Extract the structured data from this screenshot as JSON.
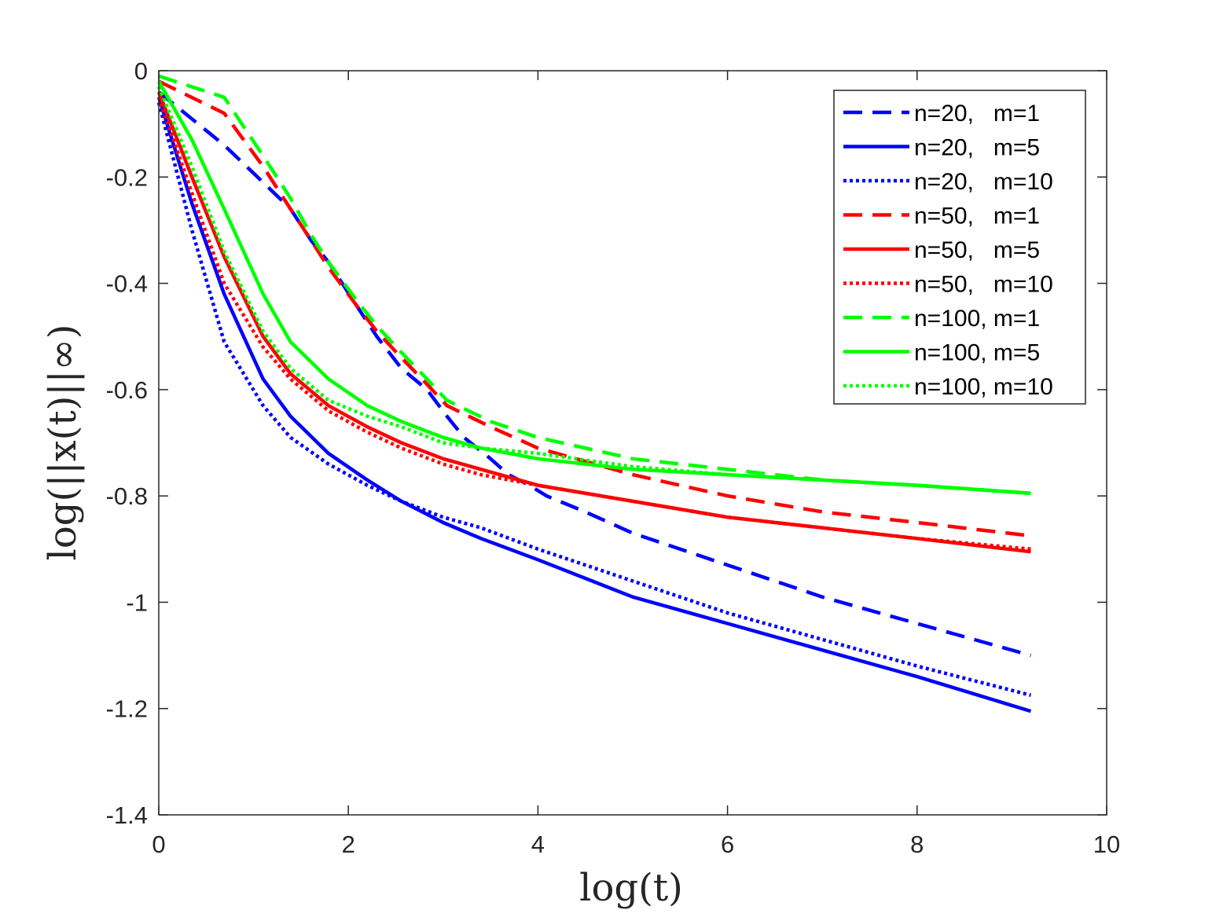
{
  "chart_data": {
    "type": "line",
    "title": "",
    "xlabel": "log(t)",
    "ylabel": "log(||x(t)||∞)",
    "xlim": [
      0,
      10
    ],
    "ylim": [
      -1.4,
      0
    ],
    "xticks": [
      0,
      2,
      4,
      6,
      8,
      10
    ],
    "yticks": [
      0,
      -0.2,
      -0.4,
      -0.6,
      -0.8,
      -1,
      -1.2,
      -1.4
    ],
    "xtick_labels": [
      "0",
      "2",
      "4",
      "6",
      "8",
      "10"
    ],
    "ytick_labels": [
      "0",
      "-0.2",
      "-0.4",
      "-0.6",
      "-0.8",
      "-1",
      "-1.2",
      "-1.4"
    ],
    "grid": false,
    "legend_position": "top-right",
    "series": [
      {
        "name": "n=20,   m=1",
        "color": "#0000ff",
        "style": "dashed",
        "x": [
          0,
          0.69,
          1.1,
          1.39,
          1.61,
          1.79,
          2.08,
          2.3,
          2.56,
          2.83,
          3.04,
          3.22,
          3.5,
          3.69,
          3.91,
          4.09,
          4.5,
          5,
          6,
          7,
          8,
          9.2
        ],
        "y": [
          -0.04,
          -0.14,
          -0.21,
          -0.26,
          -0.32,
          -0.36,
          -0.44,
          -0.5,
          -0.56,
          -0.6,
          -0.65,
          -0.69,
          -0.73,
          -0.76,
          -0.78,
          -0.8,
          -0.83,
          -0.87,
          -0.93,
          -0.99,
          -1.04,
          -1.1
        ]
      },
      {
        "name": "n=20,   m=5",
        "color": "#0000ff",
        "style": "solid",
        "x": [
          0,
          0.35,
          0.69,
          1.1,
          1.39,
          1.79,
          2.2,
          2.56,
          3,
          3.4,
          4,
          5,
          6,
          7,
          8,
          9.2
        ],
        "y": [
          -0.05,
          -0.25,
          -0.42,
          -0.58,
          -0.65,
          -0.72,
          -0.77,
          -0.81,
          -0.85,
          -0.88,
          -0.92,
          -0.99,
          -1.04,
          -1.09,
          -1.14,
          -1.205
        ]
      },
      {
        "name": "n=20,   m=10",
        "color": "#0000ff",
        "style": "dotted",
        "x": [
          0,
          0.35,
          0.69,
          1.1,
          1.39,
          1.79,
          2.2,
          2.56,
          3,
          3.4,
          4,
          5,
          6,
          7,
          8,
          9.2
        ],
        "y": [
          -0.06,
          -0.3,
          -0.51,
          -0.63,
          -0.69,
          -0.74,
          -0.78,
          -0.81,
          -0.84,
          -0.86,
          -0.9,
          -0.96,
          -1.02,
          -1.07,
          -1.12,
          -1.175
        ]
      },
      {
        "name": "n=50,   m=1",
        "color": "#ff0000",
        "style": "dashed",
        "x": [
          0,
          0.69,
          1.1,
          1.39,
          1.61,
          1.79,
          2.08,
          2.3,
          2.56,
          2.83,
          3.04,
          3.5,
          4,
          5,
          6,
          7,
          8,
          9.2
        ],
        "y": [
          -0.02,
          -0.08,
          -0.18,
          -0.26,
          -0.32,
          -0.37,
          -0.44,
          -0.49,
          -0.54,
          -0.59,
          -0.63,
          -0.67,
          -0.71,
          -0.76,
          -0.8,
          -0.83,
          -0.85,
          -0.875
        ]
      },
      {
        "name": "n=50,   m=5",
        "color": "#ff0000",
        "style": "solid",
        "x": [
          0,
          0.35,
          0.69,
          1.1,
          1.39,
          1.79,
          2.2,
          2.56,
          3,
          3.4,
          4,
          5,
          6,
          7,
          8,
          9.2
        ],
        "y": [
          -0.04,
          -0.2,
          -0.35,
          -0.5,
          -0.57,
          -0.63,
          -0.67,
          -0.7,
          -0.73,
          -0.75,
          -0.78,
          -0.81,
          -0.84,
          -0.86,
          -0.88,
          -0.905
        ]
      },
      {
        "name": "n=50,   m=10",
        "color": "#ff0000",
        "style": "dotted",
        "x": [
          0,
          0.35,
          0.69,
          1.1,
          1.39,
          1.79,
          2.2,
          2.56,
          3,
          3.4,
          4,
          5,
          6,
          7,
          8,
          9.2
        ],
        "y": [
          -0.05,
          -0.23,
          -0.4,
          -0.52,
          -0.58,
          -0.64,
          -0.68,
          -0.71,
          -0.74,
          -0.76,
          -0.78,
          -0.81,
          -0.84,
          -0.86,
          -0.88,
          -0.9
        ]
      },
      {
        "name": "n=100, m=1",
        "color": "#00ff00",
        "style": "dashed",
        "x": [
          0,
          0.69,
          1.1,
          1.39,
          1.61,
          1.79,
          2.08,
          2.3,
          2.56,
          2.83,
          3.04,
          3.5,
          4,
          5,
          6,
          7,
          8,
          9.2
        ],
        "y": [
          -0.01,
          -0.05,
          -0.16,
          -0.24,
          -0.31,
          -0.36,
          -0.43,
          -0.48,
          -0.53,
          -0.58,
          -0.62,
          -0.66,
          -0.69,
          -0.73,
          -0.75,
          -0.77,
          -0.78,
          -0.795
        ]
      },
      {
        "name": "n=100, m=5",
        "color": "#00ff00",
        "style": "solid",
        "x": [
          0,
          0.35,
          0.69,
          1.1,
          1.39,
          1.79,
          2.2,
          2.56,
          3,
          3.4,
          4,
          5,
          6,
          7,
          8,
          9.2
        ],
        "y": [
          -0.02,
          -0.13,
          -0.26,
          -0.42,
          -0.51,
          -0.58,
          -0.63,
          -0.66,
          -0.69,
          -0.71,
          -0.73,
          -0.75,
          -0.76,
          -0.77,
          -0.78,
          -0.795
        ]
      },
      {
        "name": "n=100, m=10",
        "color": "#00ff00",
        "style": "dotted",
        "x": [
          0,
          0.35,
          0.69,
          1.1,
          1.39,
          1.79,
          2.2,
          2.56,
          3,
          3.4,
          4,
          5,
          6,
          7,
          8,
          9.2
        ],
        "y": [
          -0.03,
          -0.18,
          -0.34,
          -0.49,
          -0.56,
          -0.62,
          -0.65,
          -0.67,
          -0.7,
          -0.71,
          -0.72,
          -0.745,
          -0.76,
          -0.77,
          -0.78,
          -0.795
        ]
      }
    ]
  }
}
